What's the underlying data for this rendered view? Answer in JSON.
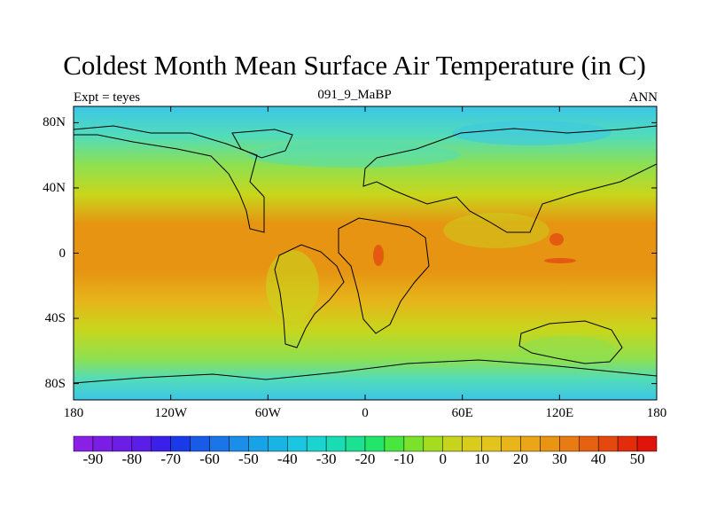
{
  "title": "Coldest Month Mean Surface Air Temperature (in C)",
  "left_label": "Expt = teyes",
  "center_label": "091_9_MaBP",
  "right_label": "ANN",
  "map": {
    "lon_ticks": [
      "180",
      "120W",
      "60W",
      "0",
      "60E",
      "120E",
      "180"
    ],
    "lat_ticks": [
      "80N",
      "40N",
      "0",
      "40S",
      "80S"
    ],
    "lon_range": [
      -180,
      180
    ],
    "lat_range": [
      -90,
      90
    ]
  },
  "colorbar": {
    "labels": [
      "-90",
      "-80",
      "-70",
      "-60",
      "-50",
      "-40",
      "-30",
      "-20",
      "-10",
      "0",
      "10",
      "20",
      "30",
      "40",
      "50"
    ],
    "colors": [
      "#8a1fe6",
      "#7a1ee6",
      "#6a1ee6",
      "#5a1ee6",
      "#3a20e8",
      "#1a3ae8",
      "#1a5ae8",
      "#1a76e8",
      "#1a8ee8",
      "#18a2e8",
      "#18b4e4",
      "#1ac6e0",
      "#1ad4d0",
      "#1adcb4",
      "#1ae292",
      "#22e66a",
      "#4ae640",
      "#7ae22a",
      "#a6dc20",
      "#c6d41e",
      "#d8cc1c",
      "#e2c41a",
      "#e8b618",
      "#eaa616",
      "#ea9414",
      "#e87c12",
      "#e66210",
      "#e4480e",
      "#e22c0c",
      "#e0140a"
    ]
  },
  "colors": {
    "polar": "#3cc6e6",
    "subpolar": "#52dcba",
    "cool": "#8ee050",
    "temperate": "#c8d61c",
    "warm": "#e6b41a",
    "tropical": "#e69412",
    "hot": "#e45a10"
  }
}
